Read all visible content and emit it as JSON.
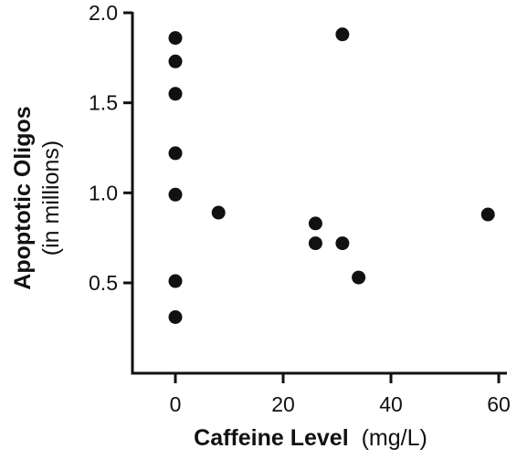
{
  "chart_data": {
    "type": "scatter",
    "title": "",
    "xlabel_bold": "Caffeine Level",
    "xlabel_unit": "(mg/L)",
    "ylabel_bold": "Apoptotic Oligos",
    "ylabel_sub": "(in millions)",
    "xlim": [
      -8,
      62
    ],
    "ylim": [
      0,
      2.0
    ],
    "xticks": [
      0,
      20,
      40,
      60
    ],
    "xtick_labels": [
      "0",
      "20",
      "40",
      "60"
    ],
    "yticks": [
      0.5,
      1.0,
      1.5,
      2.0
    ],
    "ytick_labels": [
      "0.5",
      "1.0",
      "1.5",
      "2.0"
    ],
    "grid": false,
    "legend": "none",
    "marker_color": "#111111",
    "points": [
      {
        "x": 0,
        "y": 1.86
      },
      {
        "x": 0,
        "y": 1.73
      },
      {
        "x": 0,
        "y": 1.55
      },
      {
        "x": 0,
        "y": 1.22
      },
      {
        "x": 0,
        "y": 0.99
      },
      {
        "x": 0,
        "y": 0.51
      },
      {
        "x": 0,
        "y": 0.31
      },
      {
        "x": 8,
        "y": 0.89
      },
      {
        "x": 26,
        "y": 0.83
      },
      {
        "x": 26,
        "y": 0.72
      },
      {
        "x": 31,
        "y": 1.88
      },
      {
        "x": 31,
        "y": 0.72
      },
      {
        "x": 34,
        "y": 0.53
      },
      {
        "x": 58,
        "y": 0.88
      }
    ]
  }
}
